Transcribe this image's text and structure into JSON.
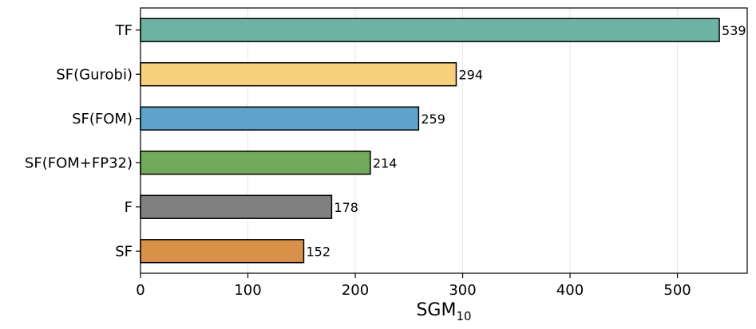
{
  "chart_data": {
    "type": "bar",
    "orientation": "horizontal",
    "categories": [
      "TF",
      "SF(Gurobi)",
      "SF(FOM)",
      "SF(FOM+FP32)",
      "F",
      "SF"
    ],
    "values": [
      539,
      294,
      259,
      214,
      178,
      152
    ],
    "colors": [
      "#6db3a3",
      "#f8d17f",
      "#5ea3cb",
      "#72a95b",
      "#808080",
      "#d99048"
    ],
    "xlabel": "SGM",
    "xlabel_subscript": "10",
    "xlim": [
      0,
      565
    ],
    "xticks": [
      0,
      100,
      200,
      300,
      400,
      500
    ],
    "grid": "vertical",
    "title": ""
  }
}
